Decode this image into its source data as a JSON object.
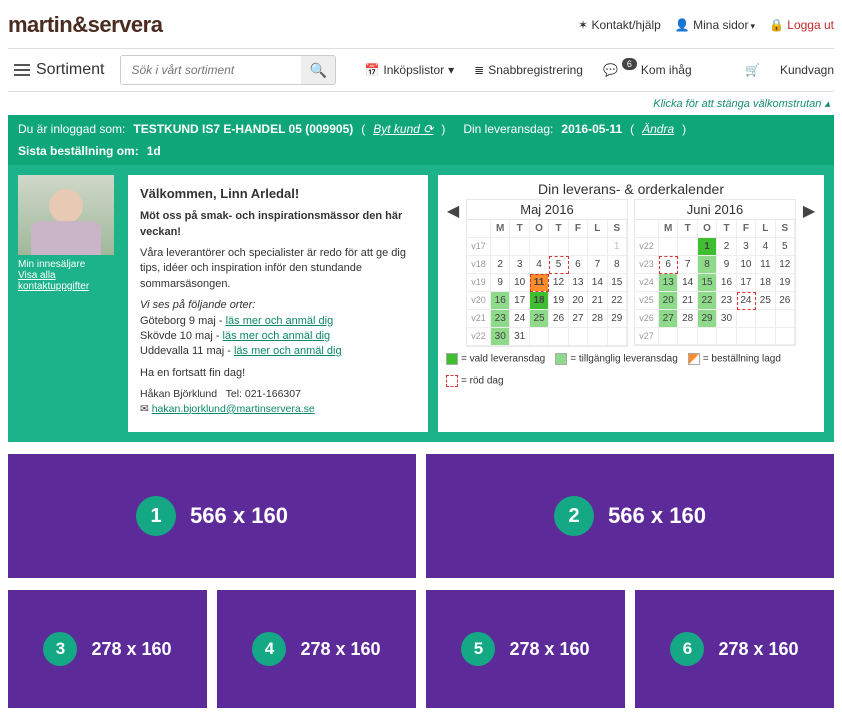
{
  "brand": "martin&servera",
  "top": {
    "kontakt": "Kontakt/hjälp",
    "mina": "Mina sidor",
    "logout": "Logga ut"
  },
  "nav": {
    "sortiment": "Sortiment",
    "search_placeholder": "Sök i vårt sortiment",
    "inkop": "Inköpslistor",
    "snabb": "Snabbregistrering",
    "kom": "Kom ihåg",
    "kom_badge": "6",
    "cart": "Kundvagn"
  },
  "close_welcome": "Klicka för att stänga välkomstrutan",
  "greenbar": {
    "logged_prefix": "Du är inloggad som:",
    "customer": "TESTKUND IS7 E-HANDEL 05 (009905)",
    "byt": "Byt kund",
    "lev_prefix": "Din leveransdag:",
    "lev_date": "2016-05-11",
    "andra": "Ändra",
    "last_prefix": "Sista beställning om:",
    "last_val": "1d"
  },
  "seller": {
    "caption": "Min innesäljare",
    "link": "Visa alla kontaktuppgifter"
  },
  "welcome": {
    "title": "Välkommen, Linn Arledal!",
    "p1": "Möt oss på smak- och inspirationsmässor den här veckan!",
    "p2": "Våra leverantörer och specialister är redo för att ge dig tips, idéer och inspiration inför den stundande sommarsäsongen.",
    "p3": "Vi ses på följande orter:",
    "l1a": "Göteborg 9 maj - ",
    "l1b": "läs mer och anmäl dig",
    "l2a": "Skövde 10 maj - ",
    "l2b": "läs mer och anmäl dig",
    "l3a": "Uddevalla 11 maj - ",
    "l3b": "läs mer och anmäl dig",
    "p4": "Ha en fortsatt fin dag!",
    "sig_name": "Håkan Björklund",
    "sig_tel_label": "Tel:",
    "sig_tel": "021-166307",
    "sig_mail": "hakan.bjorklund@martinservera.se"
  },
  "calendar": {
    "title": "Din leverans- & orderkalender",
    "weekday_labels": [
      "M",
      "T",
      "O",
      "T",
      "F",
      "L",
      "S"
    ],
    "months": [
      {
        "name": "Maj 2016",
        "rows": [
          {
            "wk": "v17",
            "days": [
              {
                "n": "",
                "c": ""
              },
              {
                "n": "",
                "c": ""
              },
              {
                "n": "",
                "c": ""
              },
              {
                "n": "",
                "c": ""
              },
              {
                "n": "",
                "c": ""
              },
              {
                "n": "",
                "c": ""
              },
              {
                "n": "1",
                "c": "dim"
              }
            ]
          },
          {
            "wk": "v18",
            "days": [
              {
                "n": "2",
                "c": ""
              },
              {
                "n": "3",
                "c": ""
              },
              {
                "n": "4",
                "c": ""
              },
              {
                "n": "5",
                "c": "red"
              },
              {
                "n": "6",
                "c": ""
              },
              {
                "n": "7",
                "c": ""
              },
              {
                "n": "8",
                "c": ""
              }
            ]
          },
          {
            "wk": "v19",
            "days": [
              {
                "n": "9",
                "c": ""
              },
              {
                "n": "10",
                "c": ""
              },
              {
                "n": "11",
                "c": "today"
              },
              {
                "n": "12",
                "c": ""
              },
              {
                "n": "13",
                "c": ""
              },
              {
                "n": "14",
                "c": ""
              },
              {
                "n": "15",
                "c": ""
              }
            ]
          },
          {
            "wk": "v20",
            "days": [
              {
                "n": "16",
                "c": "avail"
              },
              {
                "n": "17",
                "c": ""
              },
              {
                "n": "18",
                "c": "sel"
              },
              {
                "n": "19",
                "c": ""
              },
              {
                "n": "20",
                "c": ""
              },
              {
                "n": "21",
                "c": ""
              },
              {
                "n": "22",
                "c": ""
              }
            ]
          },
          {
            "wk": "v21",
            "days": [
              {
                "n": "23",
                "c": "avail"
              },
              {
                "n": "24",
                "c": ""
              },
              {
                "n": "25",
                "c": "avail"
              },
              {
                "n": "26",
                "c": ""
              },
              {
                "n": "27",
                "c": ""
              },
              {
                "n": "28",
                "c": ""
              },
              {
                "n": "29",
                "c": ""
              }
            ]
          },
          {
            "wk": "v22",
            "days": [
              {
                "n": "30",
                "c": "avail"
              },
              {
                "n": "31",
                "c": ""
              },
              {
                "n": "",
                "c": ""
              },
              {
                "n": "",
                "c": ""
              },
              {
                "n": "",
                "c": ""
              },
              {
                "n": "",
                "c": ""
              },
              {
                "n": "",
                "c": ""
              }
            ]
          }
        ]
      },
      {
        "name": "Juni 2016",
        "rows": [
          {
            "wk": "v22",
            "days": [
              {
                "n": "",
                "c": ""
              },
              {
                "n": "",
                "c": ""
              },
              {
                "n": "1",
                "c": "sel"
              },
              {
                "n": "2",
                "c": ""
              },
              {
                "n": "3",
                "c": ""
              },
              {
                "n": "4",
                "c": ""
              },
              {
                "n": "5",
                "c": ""
              }
            ]
          },
          {
            "wk": "v23",
            "days": [
              {
                "n": "6",
                "c": "red"
              },
              {
                "n": "7",
                "c": ""
              },
              {
                "n": "8",
                "c": "avail"
              },
              {
                "n": "9",
                "c": ""
              },
              {
                "n": "10",
                "c": ""
              },
              {
                "n": "11",
                "c": ""
              },
              {
                "n": "12",
                "c": ""
              }
            ]
          },
          {
            "wk": "v24",
            "days": [
              {
                "n": "13",
                "c": "avail"
              },
              {
                "n": "14",
                "c": ""
              },
              {
                "n": "15",
                "c": "avail"
              },
              {
                "n": "16",
                "c": ""
              },
              {
                "n": "17",
                "c": ""
              },
              {
                "n": "18",
                "c": ""
              },
              {
                "n": "19",
                "c": ""
              }
            ]
          },
          {
            "wk": "v25",
            "days": [
              {
                "n": "20",
                "c": "avail"
              },
              {
                "n": "21",
                "c": ""
              },
              {
                "n": "22",
                "c": "avail"
              },
              {
                "n": "23",
                "c": ""
              },
              {
                "n": "24",
                "c": "red"
              },
              {
                "n": "25",
                "c": ""
              },
              {
                "n": "26",
                "c": ""
              }
            ]
          },
          {
            "wk": "v26",
            "days": [
              {
                "n": "27",
                "c": "avail"
              },
              {
                "n": "28",
                "c": ""
              },
              {
                "n": "29",
                "c": "avail"
              },
              {
                "n": "30",
                "c": ""
              },
              {
                "n": "",
                "c": ""
              },
              {
                "n": "",
                "c": ""
              },
              {
                "n": "",
                "c": ""
              }
            ]
          },
          {
            "wk": "v27",
            "days": [
              {
                "n": "",
                "c": ""
              },
              {
                "n": "",
                "c": ""
              },
              {
                "n": "",
                "c": ""
              },
              {
                "n": "",
                "c": ""
              },
              {
                "n": "",
                "c": ""
              },
              {
                "n": "",
                "c": ""
              },
              {
                "n": "",
                "c": ""
              }
            ]
          }
        ]
      }
    ],
    "legend": {
      "sel": "= vald leveransdag",
      "av": "= tillgänglig leveransdag",
      "ord": "= beställning lagd",
      "red": "= röd dag"
    }
  },
  "tiles": {
    "big": [
      {
        "n": "1",
        "dim": "566 x 160"
      },
      {
        "n": "2",
        "dim": "566 x 160"
      }
    ],
    "small": [
      {
        "n": "3",
        "dim": "278 x 160"
      },
      {
        "n": "4",
        "dim": "278 x 160"
      },
      {
        "n": "5",
        "dim": "278 x 160"
      },
      {
        "n": "6",
        "dim": "278 x 160"
      }
    ]
  },
  "colors": {
    "brand_text": "#4a2b1f",
    "green_bar": "#0fa77a",
    "green_panel": "#1cb28a",
    "tile_purple": "#5d2a9a",
    "tile_circle": "#14a884",
    "cal_selected": "#3fbf2f",
    "cal_available": "#8fd98a",
    "cal_today": "#ff8c2b"
  }
}
